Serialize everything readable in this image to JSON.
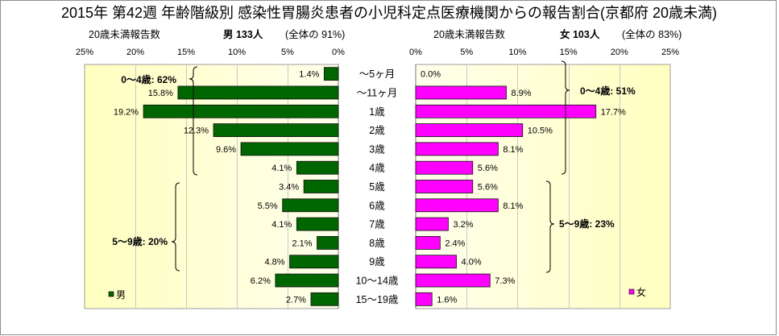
{
  "chart_data": {
    "type": "bar",
    "orientation": "horizontal",
    "title": "2015年 第42週 年齢階級別 感染性胃腸炎患者の小児科定点医療機関からの報告割合(京都府 20歳未満)",
    "categories": [
      "～5ヶ月",
      "～11ヶ月",
      "1歳",
      "2歳",
      "3歳",
      "4歳",
      "5歳",
      "6歳",
      "7歳",
      "8歳",
      "9歳",
      "10～14歳",
      "15～19歳"
    ],
    "xlim": [
      0,
      25
    ],
    "grid": true,
    "series": [
      {
        "name": "男",
        "side": "left",
        "color": "#006600",
        "header": "20歳未満報告数",
        "count_label": "男 133人",
        "share_label": "(全体の 91%)",
        "x_ticks": [
          "25%",
          "20%",
          "15%",
          "10%",
          "5%",
          "0%"
        ],
        "values": [
          1.4,
          15.8,
          19.2,
          12.3,
          9.6,
          4.1,
          3.4,
          5.5,
          4.1,
          2.1,
          4.8,
          6.2,
          2.7
        ],
        "data_labels": [
          "1.4%",
          "15.8%",
          "19.2%",
          "12.3%",
          "9.6%",
          "4.1%",
          "3.4%",
          "5.5%",
          "4.1%",
          "2.1%",
          "4.8%",
          "6.2%",
          "2.7%"
        ],
        "legend_position": "bottom-left"
      },
      {
        "name": "女",
        "side": "right",
        "color": "#FF00FF",
        "header": "20歳未満報告数",
        "count_label": "女 103人",
        "share_label": "(全体の 83%)",
        "x_ticks": [
          "0%",
          "5%",
          "10%",
          "15%",
          "20%",
          "25%"
        ],
        "values": [
          0.0,
          8.9,
          17.7,
          10.5,
          8.1,
          5.6,
          5.6,
          8.1,
          3.2,
          2.4,
          4.0,
          7.3,
          1.6
        ],
        "data_labels": [
          "0.0%",
          "8.9%",
          "17.7%",
          "10.5%",
          "8.1%",
          "5.6%",
          "5.6%",
          "8.1%",
          "3.2%",
          "2.4%",
          "4.0%",
          "7.3%",
          "1.6%"
        ],
        "legend_position": "bottom-right"
      }
    ],
    "annotations": [
      {
        "series": 0,
        "text": "0～4歳: 62%",
        "category_span": [
          0,
          5
        ]
      },
      {
        "series": 0,
        "text": "5～9歳: 20%",
        "category_span": [
          6,
          10
        ]
      },
      {
        "series": 1,
        "text": "0～4歳: 51%",
        "category_span": [
          0,
          5
        ]
      },
      {
        "series": 1,
        "text": "5～9歳: 23%",
        "category_span": [
          6,
          10
        ]
      }
    ]
  }
}
